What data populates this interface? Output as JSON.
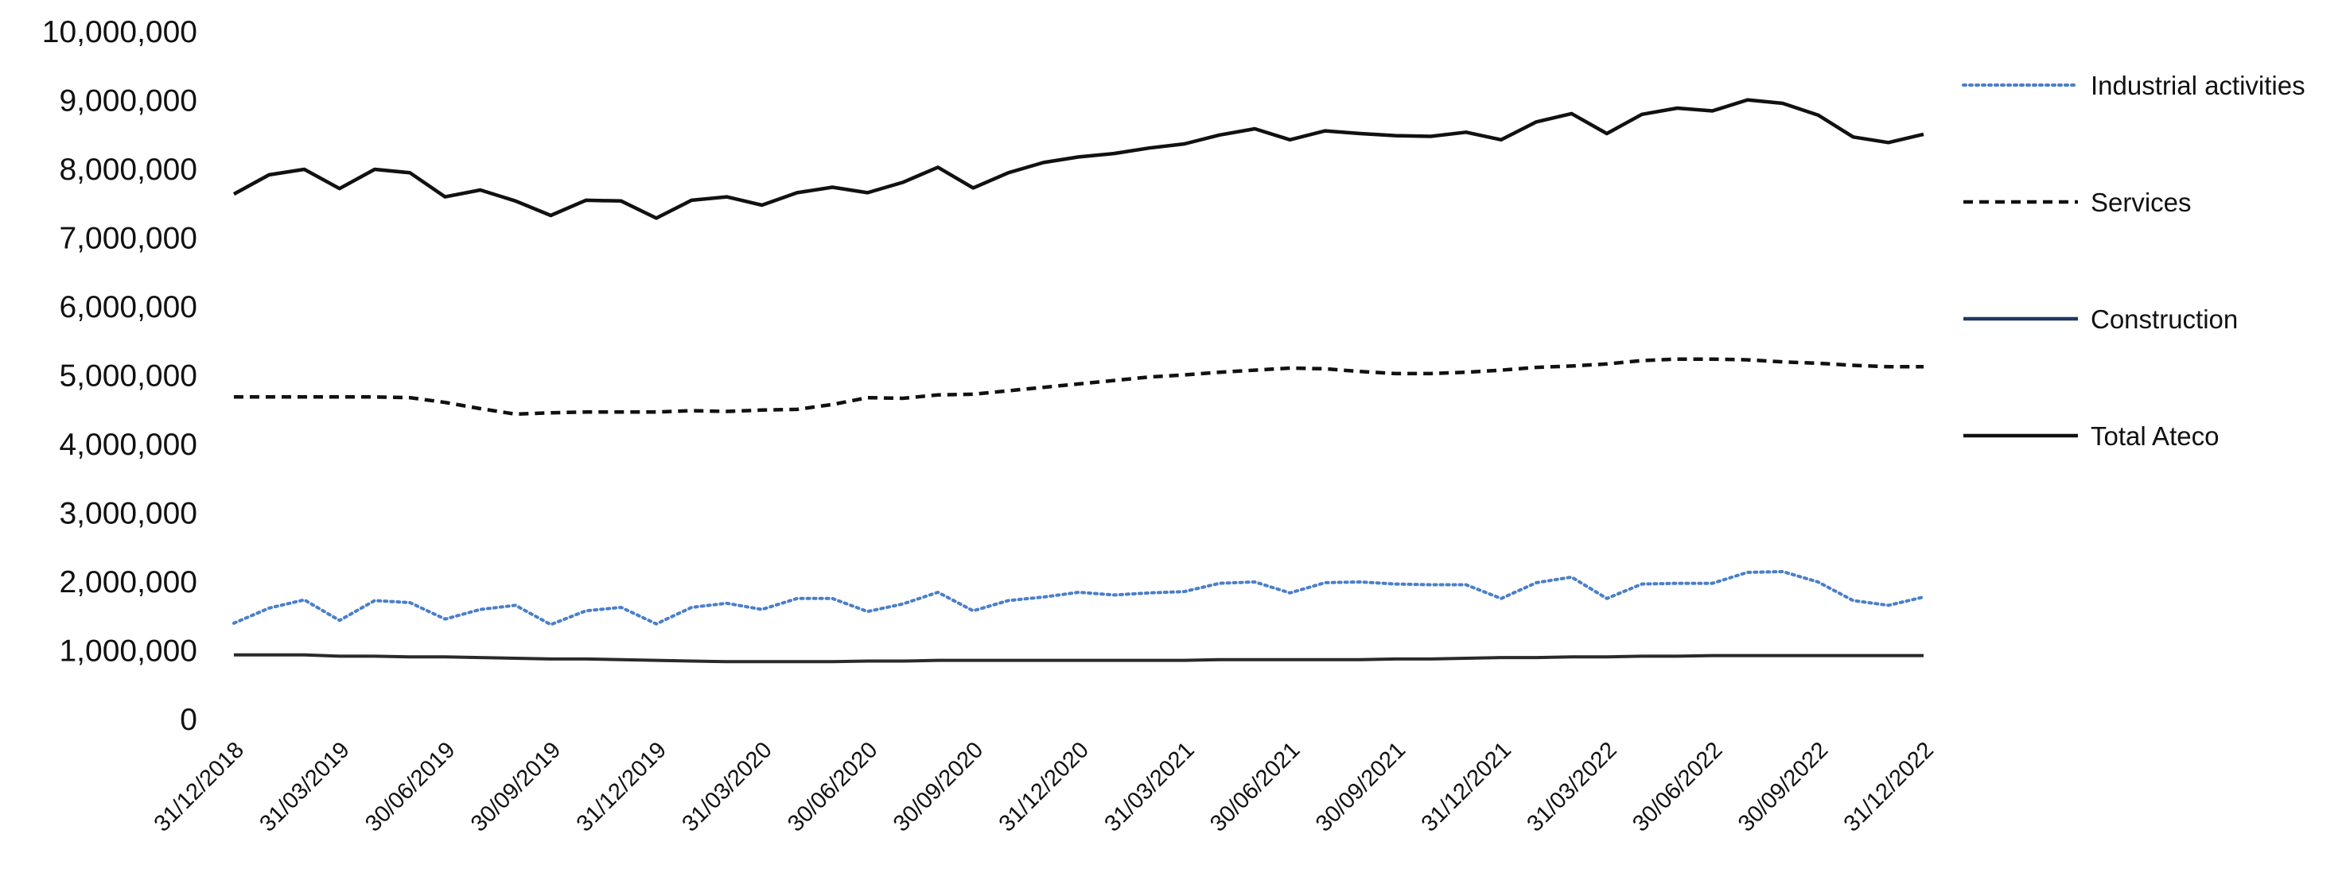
{
  "chart_data": {
    "type": "line",
    "title": "",
    "xlabel": "",
    "ylabel": "",
    "ylim": [
      0,
      10000000
    ],
    "yticks": [
      "0",
      "1,000,000",
      "2,000,000",
      "3,000,000",
      "4,000,000",
      "5,000,000",
      "6,000,000",
      "7,000,000",
      "8,000,000",
      "9,000,000",
      "10,000,000"
    ],
    "grid": false,
    "legend_position": "right",
    "x_tick_labels": [
      "31/12/2018",
      "31/03/2019",
      "30/06/2019",
      "30/09/2019",
      "31/12/2019",
      "31/03/2020",
      "30/06/2020",
      "30/09/2020",
      "31/12/2020",
      "31/03/2021",
      "30/06/2021",
      "30/09/2021",
      "31/12/2021",
      "31/03/2022",
      "30/06/2022",
      "30/09/2022",
      "31/12/2022"
    ],
    "x": [
      "31/12/2018",
      "31/01/2019",
      "28/02/2019",
      "31/03/2019",
      "30/04/2019",
      "31/05/2019",
      "30/06/2019",
      "31/07/2019",
      "31/08/2019",
      "30/09/2019",
      "31/10/2019",
      "30/11/2019",
      "31/12/2019",
      "31/01/2020",
      "29/02/2020",
      "31/03/2020",
      "30/04/2020",
      "31/05/2020",
      "30/06/2020",
      "31/07/2020",
      "31/08/2020",
      "30/09/2020",
      "31/10/2020",
      "30/11/2020",
      "31/12/2020",
      "31/01/2021",
      "28/02/2021",
      "31/03/2021",
      "30/04/2021",
      "31/05/2021",
      "30/06/2021",
      "31/07/2021",
      "31/08/2021",
      "30/09/2021",
      "31/10/2021",
      "30/11/2021",
      "31/12/2021",
      "31/01/2022",
      "28/02/2022",
      "31/03/2022",
      "30/04/2022",
      "31/05/2022",
      "30/06/2022",
      "31/07/2022",
      "31/08/2022",
      "30/09/2022",
      "31/10/2022",
      "30/11/2022",
      "31/12/2022"
    ],
    "series": [
      {
        "name": "Industrial activities",
        "color": "#4a7fc9",
        "style": "dotted",
        "values": [
          1400000,
          1620000,
          1740000,
          1440000,
          1730000,
          1700000,
          1460000,
          1600000,
          1660000,
          1380000,
          1580000,
          1630000,
          1390000,
          1630000,
          1690000,
          1600000,
          1760000,
          1760000,
          1570000,
          1680000,
          1850000,
          1580000,
          1730000,
          1780000,
          1850000,
          1810000,
          1840000,
          1860000,
          1980000,
          2000000,
          1840000,
          1990000,
          2000000,
          1970000,
          1960000,
          1960000,
          1760000,
          1990000,
          2070000,
          1760000,
          1970000,
          1980000,
          1980000,
          2140000,
          2150000,
          2000000,
          1730000,
          1660000,
          1780000
        ]
      },
      {
        "name": "Services",
        "color": "#111111",
        "style": "dashed",
        "values": [
          4690000,
          4690000,
          4690000,
          4690000,
          4690000,
          4680000,
          4610000,
          4520000,
          4440000,
          4460000,
          4470000,
          4470000,
          4470000,
          4490000,
          4480000,
          4500000,
          4510000,
          4580000,
          4680000,
          4670000,
          4720000,
          4730000,
          4780000,
          4830000,
          4880000,
          4930000,
          4980000,
          5010000,
          5050000,
          5080000,
          5110000,
          5100000,
          5060000,
          5030000,
          5030000,
          5050000,
          5080000,
          5120000,
          5140000,
          5170000,
          5220000,
          5240000,
          5240000,
          5230000,
          5200000,
          5180000,
          5150000,
          5130000,
          5130000
        ]
      },
      {
        "name": "Construction",
        "color": "#1f3864",
        "style": "solid",
        "values": [
          940000,
          940000,
          940000,
          920000,
          920000,
          910000,
          910000,
          900000,
          890000,
          880000,
          880000,
          870000,
          860000,
          850000,
          840000,
          840000,
          840000,
          840000,
          850000,
          850000,
          860000,
          860000,
          860000,
          860000,
          860000,
          860000,
          860000,
          860000,
          870000,
          870000,
          870000,
          870000,
          870000,
          880000,
          880000,
          890000,
          900000,
          900000,
          910000,
          910000,
          920000,
          920000,
          930000,
          930000,
          930000,
          930000,
          930000,
          930000,
          930000
        ]
      },
      {
        "name": "Total Ateco",
        "color": "#111111",
        "style": "solid",
        "values": [
          7640000,
          7920000,
          8000000,
          7720000,
          8000000,
          7950000,
          7600000,
          7700000,
          7540000,
          7330000,
          7550000,
          7540000,
          7290000,
          7550000,
          7600000,
          7480000,
          7660000,
          7740000,
          7660000,
          7810000,
          8030000,
          7730000,
          7950000,
          8100000,
          8180000,
          8230000,
          8310000,
          8370000,
          8500000,
          8590000,
          8430000,
          8560000,
          8520000,
          8490000,
          8480000,
          8540000,
          8430000,
          8690000,
          8810000,
          8520000,
          8800000,
          8890000,
          8850000,
          9010000,
          8960000,
          8790000,
          8470000,
          8390000,
          8510000
        ]
      }
    ]
  }
}
